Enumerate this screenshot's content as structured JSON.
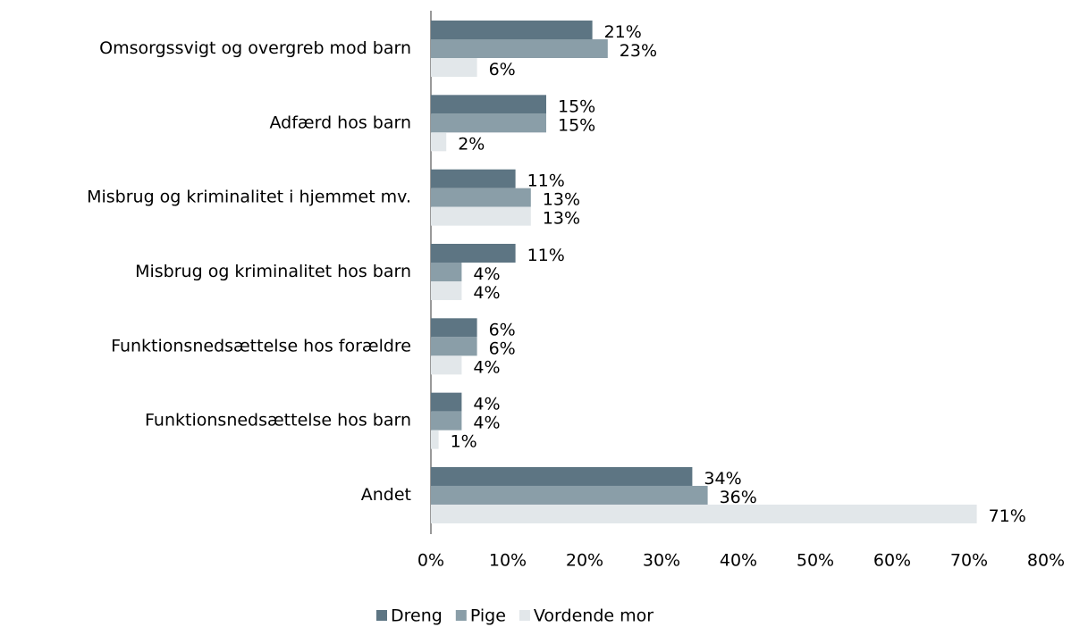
{
  "chart_data": {
    "type": "bar",
    "orientation": "horizontal",
    "categories": [
      "Omsorgssvigt og overgreb mod barn",
      "Adfærd hos barn",
      "Misbrug og kriminalitet i hjemmet mv.",
      "Misbrug og kriminalitet hos barn",
      "Funktionsnedsættelse hos forældre",
      "Funktionsnedsættelse hos barn",
      "Andet"
    ],
    "series": [
      {
        "name": "Dreng",
        "color": "#5d7583",
        "values": [
          21,
          15,
          11,
          11,
          6,
          4,
          34
        ],
        "value_labels": [
          "21%",
          "15%",
          "11%",
          "11%",
          "6%",
          "4%",
          "34%"
        ]
      },
      {
        "name": "Pige",
        "color": "#8a9ea8",
        "values": [
          23,
          15,
          13,
          4,
          6,
          4,
          36
        ],
        "value_labels": [
          "23%",
          "15%",
          "13%",
          "4%",
          "6%",
          "4%",
          "36%"
        ]
      },
      {
        "name": "Vordende mor",
        "color": "#e2e7ea",
        "values": [
          6,
          2,
          13,
          4,
          4,
          1,
          71
        ],
        "value_labels": [
          "6%",
          "2%",
          "13%",
          "4%",
          "4%",
          "1%",
          "71%"
        ]
      }
    ],
    "xlim": [
      0,
      80
    ],
    "xticks": [
      {
        "value": 0,
        "label": "0%"
      },
      {
        "value": 10,
        "label": "10%"
      },
      {
        "value": 20,
        "label": "20%"
      },
      {
        "value": 30,
        "label": "30%"
      },
      {
        "value": 40,
        "label": "40%"
      },
      {
        "value": 50,
        "label": "50%"
      },
      {
        "value": 60,
        "label": "60%"
      },
      {
        "value": 70,
        "label": "70%"
      },
      {
        "value": 80,
        "label": "80%"
      }
    ],
    "grid": false,
    "legend": "bottom"
  }
}
